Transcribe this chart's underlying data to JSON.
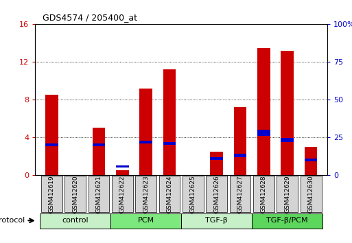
{
  "title": "GDS4574 / 205400_at",
  "samples": [
    "GSM412619",
    "GSM412620",
    "GSM412621",
    "GSM412622",
    "GSM412623",
    "GSM412624",
    "GSM412625",
    "GSM412626",
    "GSM412627",
    "GSM412628",
    "GSM412629",
    "GSM412630"
  ],
  "count_values": [
    8.5,
    0.0,
    5.0,
    0.5,
    9.2,
    11.2,
    0.0,
    2.5,
    7.2,
    13.5,
    13.2,
    3.0
  ],
  "blue_bottom_pct": [
    19,
    0,
    19,
    5,
    21,
    20,
    0,
    10,
    12,
    26,
    22,
    9
  ],
  "blue_height_pct": [
    2,
    0,
    2,
    1.5,
    1.5,
    2,
    0,
    2,
    2,
    4,
    2.5,
    2
  ],
  "groups": [
    {
      "label": "control",
      "start": 0,
      "end": 3,
      "color": "#c8f0c8"
    },
    {
      "label": "PCM",
      "start": 3,
      "end": 6,
      "color": "#7de87d"
    },
    {
      "label": "TGF-β",
      "start": 6,
      "end": 9,
      "color": "#c8f0c8"
    },
    {
      "label": "TGF-β/PCM",
      "start": 9,
      "end": 12,
      "color": "#5cd65c"
    }
  ],
  "ylim_left": [
    0,
    16
  ],
  "ylim_right": [
    0,
    100
  ],
  "yticks_left": [
    0,
    4,
    8,
    12,
    16
  ],
  "yticks_right": [
    0,
    25,
    50,
    75,
    100
  ],
  "bar_color": "#cc0000",
  "blue_color": "#0000cc",
  "bar_width": 0.55,
  "protocol_label": "protocol"
}
